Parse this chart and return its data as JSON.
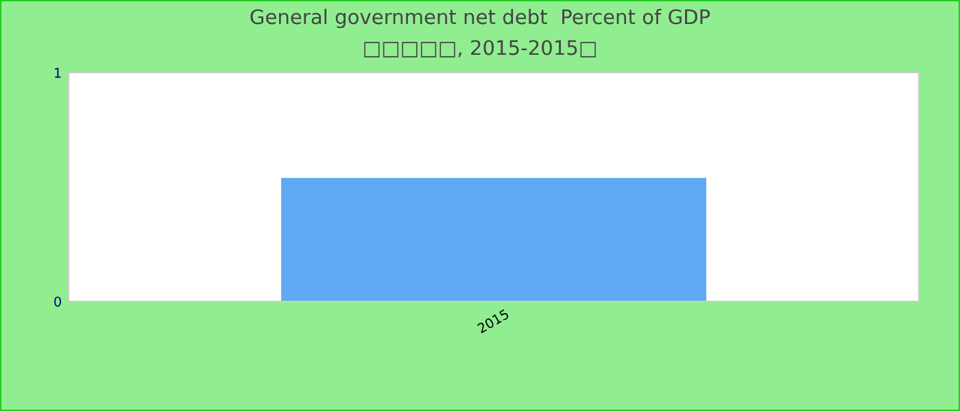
{
  "chart_data": {
    "type": "bar",
    "title": "General government net debt  Percent of GDP",
    "subtitle": "□□□□□, 2015-2015□",
    "categories": [
      "2015"
    ],
    "values": [
      0.54
    ],
    "color": "#60a9f5",
    "ylim": [
      0,
      1
    ],
    "yticks": [
      0,
      1
    ],
    "grid": false,
    "legend": false
  }
}
